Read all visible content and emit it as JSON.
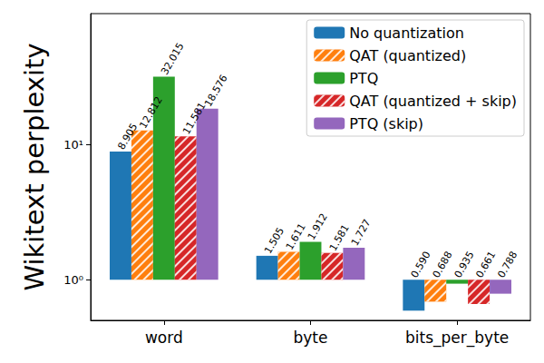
{
  "chart_data": {
    "type": "bar",
    "ylabel": "Wikitext perplexity",
    "categories": [
      "word",
      "byte",
      "bits_per_byte"
    ],
    "series": [
      {
        "name": "No quantization",
        "color": "#1f77b4",
        "values": [
          8.905,
          1.505,
          0.59
        ],
        "value_labels": [
          "8.905",
          "1.505",
          "0.590"
        ]
      },
      {
        "name": "QAT (quantized)",
        "color": "#ff7f0e",
        "values": [
          12.812,
          1.611,
          0.688
        ]
      },
      {
        "name": "PTQ",
        "color": "#2ca02c",
        "values": [
          32.015,
          1.912,
          0.935
        ]
      },
      {
        "name": "QAT (quantized + skip)",
        "color": "#d62728",
        "values": [
          11.581,
          1.581,
          0.661
        ]
      },
      {
        "name": "PTQ (skip)",
        "color": "#9467bd",
        "values": [
          18.576,
          1.727,
          0.788
        ]
      }
    ],
    "log": "y",
    "ylim": [
      0.5,
      94
    ],
    "yticks": [
      {
        "value": 1,
        "label": "10⁰"
      },
      {
        "value": 10,
        "label": "10¹"
      }
    ],
    "legend": "upper right",
    "data_labels": true,
    "grid": false
  }
}
